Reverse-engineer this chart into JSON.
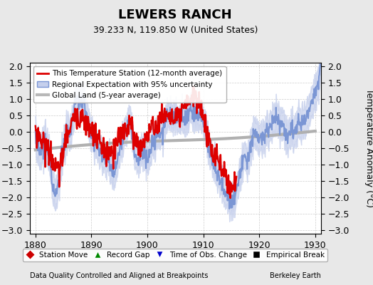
{
  "title": "LEWERS RANCH",
  "subtitle": "39.233 N, 119.850 W (United States)",
  "ylabel": "Temperature Anomaly (°C)",
  "xlabel_left": "Data Quality Controlled and Aligned at Breakpoints",
  "xlabel_right": "Berkeley Earth",
  "xlim": [
    1879,
    1931
  ],
  "ylim": [
    -3.1,
    2.1
  ],
  "yticks": [
    -3,
    -2.5,
    -2,
    -1.5,
    -1,
    -0.5,
    0,
    0.5,
    1,
    1.5,
    2
  ],
  "xticks": [
    1880,
    1890,
    1900,
    1910,
    1920,
    1930
  ],
  "bg_color": "#e8e8e8",
  "plot_bg_color": "#ffffff",
  "regional_color": "#7b96d4",
  "regional_fill_color": "#c5cfec",
  "station_color": "#dd0000",
  "global_color": "#b0b0b0",
  "legend_items": [
    {
      "label": "This Temperature Station (12-month average)",
      "color": "#dd0000",
      "lw": 2
    },
    {
      "label": "Regional Expectation with 95% uncertainty",
      "color": "#7b96d4",
      "lw": 2
    },
    {
      "label": "Global Land (5-year average)",
      "color": "#b8b8b8",
      "lw": 3
    }
  ],
  "bottom_legend": [
    {
      "label": "Station Move",
      "color": "#cc0000",
      "marker": "D"
    },
    {
      "label": "Record Gap",
      "color": "#008800",
      "marker": "^"
    },
    {
      "label": "Time of Obs. Change",
      "color": "#0000cc",
      "marker": "v"
    },
    {
      "label": "Empirical Break",
      "color": "#000000",
      "marker": "s"
    }
  ]
}
